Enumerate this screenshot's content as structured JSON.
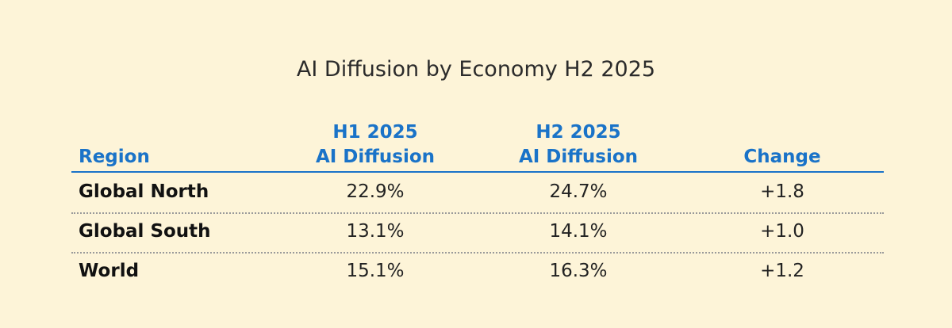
{
  "title": "AI Diffusion by Economy H2 2025",
  "table": {
    "columns": [
      [
        "Region"
      ],
      [
        "H1 2025",
        "AI Diffusion"
      ],
      [
        "H2 2025",
        "AI Diffusion"
      ],
      [
        "Change"
      ]
    ],
    "rows": [
      [
        "Global North",
        "22.9%",
        "24.7%",
        "+1.8"
      ],
      [
        "Global South",
        "13.1%",
        "14.1%",
        "+1.0"
      ],
      [
        "World",
        "15.1%",
        "16.3%",
        "+1.2"
      ]
    ]
  }
}
